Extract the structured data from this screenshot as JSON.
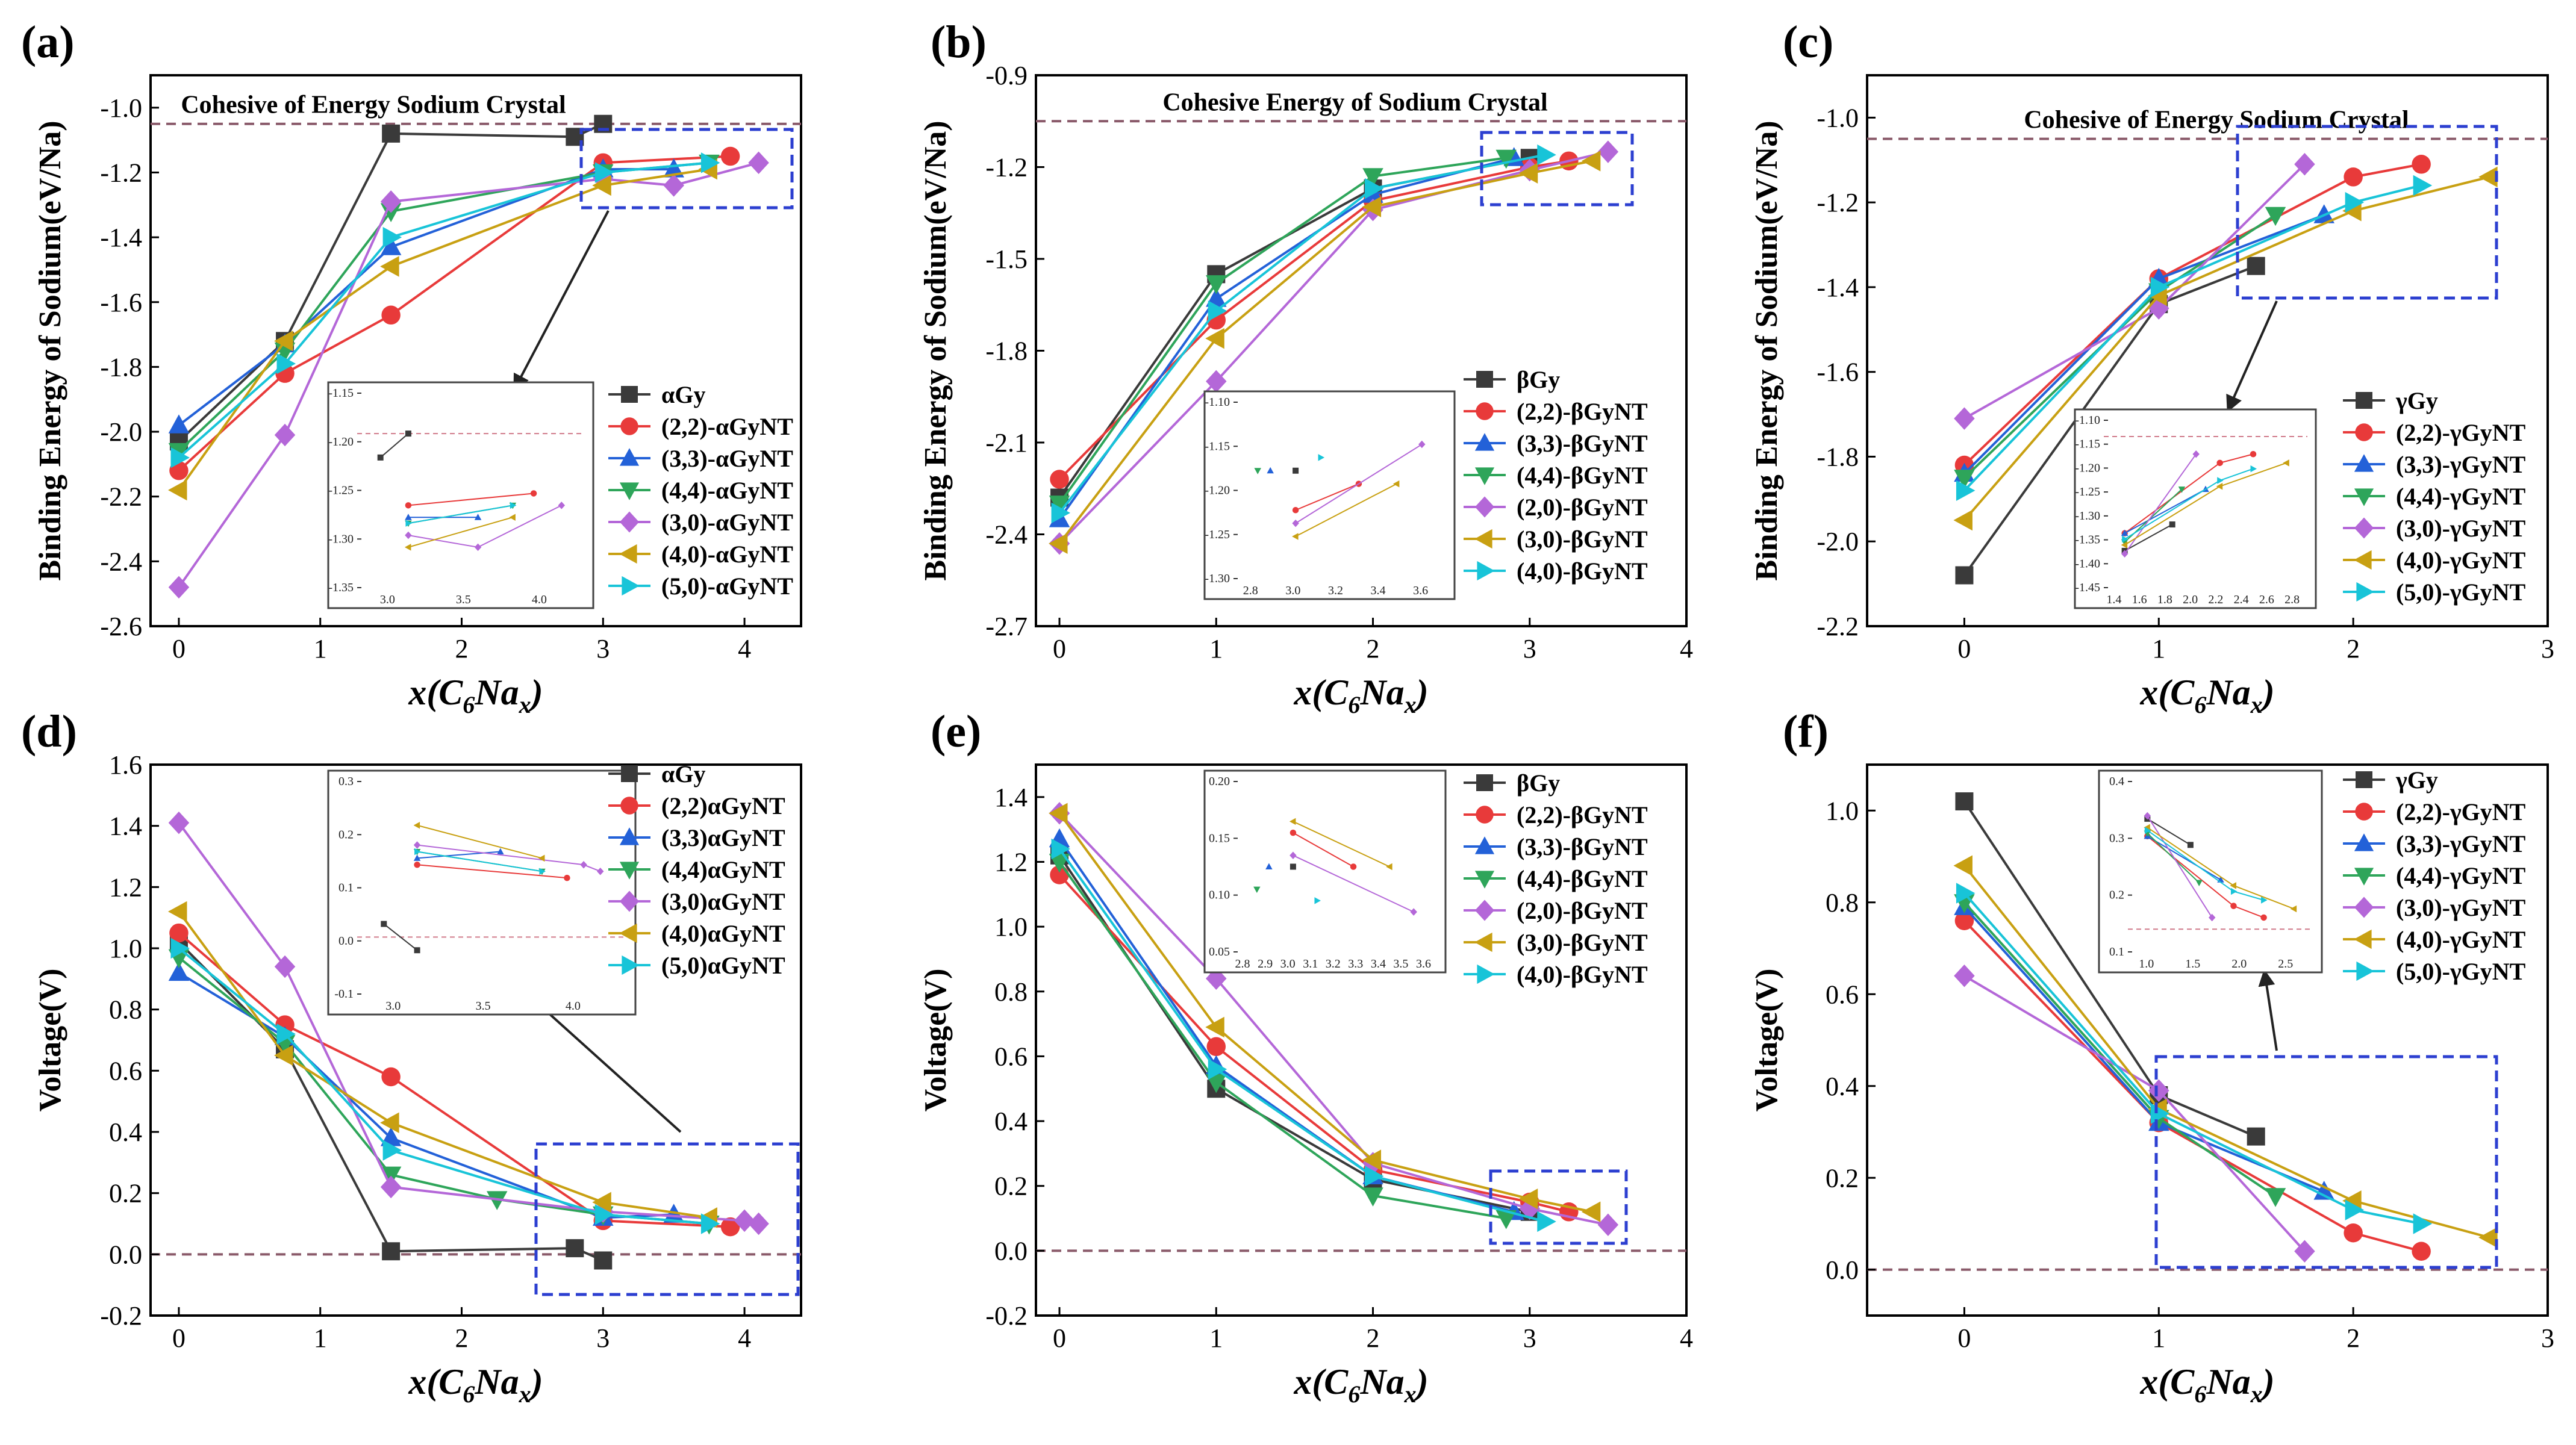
{
  "figure": {
    "panels": [
      "(a)",
      "(b)",
      "(c)",
      "(d)",
      "(e)",
      "(f)"
    ],
    "cohesive_label_a": "Cohesive of Energy Sodium Crystal",
    "cohesive_label_b": "Cohesive Energy of Sodium Crystal",
    "cohesive_label_c": "Cohesive of Energy Sodium Crystal",
    "ylabel_top": "Binding Energy of Sodium(eV/Na)",
    "ylabel_bottom": "Voltage(V)",
    "xlabel_prefix": "x(C",
    "xlabel_sub6": "6",
    "xlabel_mid": "Na",
    "xlabel_subx": "x",
    "xlabel_suffix": ")"
  },
  "colors": {
    "black": "#3a3a3a",
    "red": "#e83a3a",
    "blue": "#2361d8",
    "green": "#2ea55a",
    "purple": "#b467d8",
    "gold": "#c8a012",
    "cyan": "#18c4d8"
  },
  "chart_data": [
    {
      "type": "line",
      "id": "a",
      "title": "(a)",
      "ylabel": "Binding Energy of Sodium(eV/Na)",
      "xlabel": "x(C6Nax)",
      "xlim": [
        -0.2,
        4.4
      ],
      "ylim": [
        -2.6,
        -0.9
      ],
      "xticks": [
        0,
        1,
        2,
        3,
        4
      ],
      "yticks": [
        -2.6,
        -2.4,
        -2.2,
        -2.0,
        -1.8,
        -1.6,
        -1.4,
        -1.2,
        -1.0
      ],
      "reference_line": -1.05,
      "reference_label": "Cohesive of Energy Sodium Crystal",
      "series": [
        {
          "name": "αGy",
          "color": "black",
          "marker": "square",
          "x": [
            0,
            0.75,
            1.5,
            2.8,
            3.0
          ],
          "y": [
            -2.03,
            -1.72,
            -1.08,
            -1.09,
            -1.05
          ]
        },
        {
          "name": "(2,2)-αGyNT",
          "color": "red",
          "marker": "circle",
          "x": [
            0,
            0.75,
            1.5,
            3.0,
            3.9
          ],
          "y": [
            -2.12,
            -1.82,
            -1.64,
            -1.17,
            -1.15
          ]
        },
        {
          "name": "(3,3)-αGyNT",
          "color": "blue",
          "marker": "triangle-up",
          "x": [
            0,
            0.75,
            1.5,
            3.0,
            3.5
          ],
          "y": [
            -1.98,
            -1.73,
            -1.43,
            -1.19,
            -1.19
          ]
        },
        {
          "name": "(4,4)-αGyNT",
          "color": "green",
          "marker": "triangle-down",
          "x": [
            0,
            0.75,
            1.5,
            3.0,
            3.75
          ],
          "y": [
            -2.06,
            -1.75,
            -1.32,
            -1.2,
            -1.17
          ]
        },
        {
          "name": "(3,0)-αGyNT",
          "color": "purple",
          "marker": "diamond",
          "x": [
            0,
            0.75,
            1.5,
            3.0,
            3.5,
            4.1
          ],
          "y": [
            -2.48,
            -2.01,
            -1.29,
            -1.22,
            -1.24,
            -1.17
          ]
        },
        {
          "name": "(4,0)-αGyNT",
          "color": "gold",
          "marker": "triangle-left",
          "x": [
            0,
            0.75,
            1.5,
            3.0,
            3.75
          ],
          "y": [
            -2.18,
            -1.72,
            -1.49,
            -1.24,
            -1.19
          ]
        },
        {
          "name": "(5,0)-αGyNT",
          "color": "cyan",
          "marker": "triangle-right",
          "x": [
            0,
            0.75,
            1.5,
            3.0,
            3.75
          ],
          "y": [
            -2.08,
            -1.79,
            -1.4,
            -1.2,
            -1.17
          ]
        }
      ],
      "inset": {
        "xticks": [
          "3.0",
          "3.5",
          "4.0"
        ],
        "yticks": [
          "-1.15",
          "-1.20",
          "-1.25",
          "-1.30",
          "-1.35"
        ]
      }
    },
    {
      "type": "line",
      "id": "b",
      "title": "(b)",
      "ylabel": "Binding Energy of Sodium(eV/Na)",
      "xlabel": "x(C6Nax)",
      "xlim": [
        -0.15,
        4.0
      ],
      "ylim": [
        -2.7,
        -0.9
      ],
      "xticks": [
        0,
        1,
        2,
        3,
        4
      ],
      "yticks": [
        -2.7,
        -2.4,
        -2.1,
        -1.8,
        -1.5,
        -1.2,
        -0.9
      ],
      "reference_line": -1.05,
      "reference_label": "Cohesive Energy of Sodium Crystal",
      "series": [
        {
          "name": "βGy",
          "color": "black",
          "marker": "square",
          "x": [
            0,
            1,
            2,
            3
          ],
          "y": [
            -2.28,
            -1.55,
            -1.27,
            -1.17
          ]
        },
        {
          "name": "(2,2)-βGyNT",
          "color": "red",
          "marker": "circle",
          "x": [
            0,
            1,
            2,
            3,
            3.25
          ],
          "y": [
            -2.22,
            -1.7,
            -1.31,
            -1.2,
            -1.18
          ]
        },
        {
          "name": "(3,3)-βGyNT",
          "color": "blue",
          "marker": "triangle-up",
          "x": [
            0,
            1,
            2,
            2.9
          ],
          "y": [
            -2.35,
            -1.63,
            -1.29,
            -1.17
          ]
        },
        {
          "name": "(4,4)-βGyNT",
          "color": "green",
          "marker": "triangle-down",
          "x": [
            0,
            1,
            2,
            2.85
          ],
          "y": [
            -2.3,
            -1.58,
            -1.23,
            -1.17
          ]
        },
        {
          "name": "(2,0)-βGyNT",
          "color": "purple",
          "marker": "diamond",
          "x": [
            0,
            1,
            2,
            3,
            3.5
          ],
          "y": [
            -2.43,
            -1.9,
            -1.34,
            -1.21,
            -1.15
          ]
        },
        {
          "name": "(3,0)-βGyNT",
          "color": "gold",
          "marker": "triangle-left",
          "x": [
            0,
            1,
            2,
            3,
            3.4
          ],
          "y": [
            -2.43,
            -1.76,
            -1.33,
            -1.22,
            -1.18
          ]
        },
        {
          "name": "(4,0)-βGyNT",
          "color": "cyan",
          "marker": "triangle-right",
          "x": [
            0,
            1,
            2,
            3.1
          ],
          "y": [
            -2.33,
            -1.67,
            -1.27,
            -1.16
          ]
        }
      ],
      "inset": {
        "xticks": [
          "2.8",
          "3.0",
          "3.2",
          "3.4",
          "3.6"
        ],
        "yticks": [
          "-1.10",
          "-1.15",
          "-1.20",
          "-1.25",
          "-1.30"
        ]
      }
    },
    {
      "type": "line",
      "id": "c",
      "title": "(c)",
      "ylabel": "Binding Energy of Sodium(eV/Na)",
      "xlabel": "x(C6Nax)",
      "xlim": [
        -0.5,
        3.0
      ],
      "ylim": [
        -2.2,
        -0.9
      ],
      "xticks": [
        0,
        1,
        2,
        3
      ],
      "yticks": [
        -2.2,
        -2.0,
        -1.8,
        -1.6,
        -1.4,
        -1.2,
        -1.0
      ],
      "reference_line": -1.05,
      "reference_label": "Cohesive of Energy Sodium Crystal",
      "series": [
        {
          "name": "γGy",
          "color": "black",
          "marker": "square",
          "x": [
            0,
            1,
            1.5
          ],
          "y": [
            -2.08,
            -1.44,
            -1.35
          ]
        },
        {
          "name": "(2,2)-γGyNT",
          "color": "red",
          "marker": "circle",
          "x": [
            0,
            1,
            2,
            2.35
          ],
          "y": [
            -1.82,
            -1.38,
            -1.14,
            -1.11
          ]
        },
        {
          "name": "(3,3)-γGyNT",
          "color": "blue",
          "marker": "triangle-up",
          "x": [
            0,
            1,
            1.85
          ],
          "y": [
            -1.84,
            -1.38,
            -1.23
          ]
        },
        {
          "name": "(4,4)-γGyNT",
          "color": "green",
          "marker": "triangle-down",
          "x": [
            0,
            1,
            1.6
          ],
          "y": [
            -1.85,
            -1.41,
            -1.23
          ]
        },
        {
          "name": "(3,0)-γGyNT",
          "color": "purple",
          "marker": "diamond",
          "x": [
            0,
            1,
            1.75
          ],
          "y": [
            -1.71,
            -1.45,
            -1.11
          ]
        },
        {
          "name": "(4,0)-γGyNT",
          "color": "gold",
          "marker": "triangle-left",
          "x": [
            0,
            1,
            2,
            2.7
          ],
          "y": [
            -1.95,
            -1.42,
            -1.22,
            -1.14
          ]
        },
        {
          "name": "(5,0)-γGyNT",
          "color": "cyan",
          "marker": "triangle-right",
          "x": [
            0,
            1,
            2,
            2.35
          ],
          "y": [
            -1.88,
            -1.4,
            -1.2,
            -1.16
          ]
        }
      ],
      "inset": {
        "xticks": [
          "1.4",
          "1.6",
          "1.8",
          "2.0",
          "2.2",
          "2.4",
          "2.6",
          "2.8"
        ],
        "yticks": [
          "-1.10",
          "-1.15",
          "-1.20",
          "-1.25",
          "-1.30",
          "-1.35",
          "-1.40",
          "-1.45"
        ]
      }
    },
    {
      "type": "line",
      "id": "d",
      "title": "(d)",
      "ylabel": "Voltage(V)",
      "xlabel": "x(C6Nax)",
      "xlim": [
        -0.2,
        4.4
      ],
      "ylim": [
        -0.2,
        1.6
      ],
      "xticks": [
        0,
        1,
        2,
        3,
        4
      ],
      "yticks": [
        -0.2,
        0.0,
        0.2,
        0.4,
        0.6,
        0.8,
        1.0,
        1.2,
        1.4,
        1.6
      ],
      "reference_line": 0.0,
      "series": [
        {
          "name": "αGy",
          "color": "black",
          "marker": "square",
          "x": [
            0,
            0.75,
            1.5,
            2.8,
            3.0
          ],
          "y": [
            1.02,
            0.67,
            0.01,
            0.02,
            -0.02
          ]
        },
        {
          "name": "(2,2)αGyNT",
          "color": "red",
          "marker": "circle",
          "x": [
            0,
            0.75,
            1.5,
            3.0,
            3.9
          ],
          "y": [
            1.05,
            0.75,
            0.58,
            0.11,
            0.09
          ]
        },
        {
          "name": "(3,3)αGyNT",
          "color": "blue",
          "marker": "triangle-up",
          "x": [
            0,
            0.75,
            1.5,
            3.0,
            3.5
          ],
          "y": [
            0.92,
            0.71,
            0.38,
            0.12,
            0.13
          ]
        },
        {
          "name": "(4,4)αGyNT",
          "color": "green",
          "marker": "triangle-down",
          "x": [
            0,
            0.75,
            1.5,
            2.25,
            3.0,
            3.75
          ],
          "y": [
            0.97,
            0.69,
            0.26,
            0.18,
            0.13,
            0.1
          ]
        },
        {
          "name": "(3,0)αGyNT",
          "color": "purple",
          "marker": "diamond",
          "x": [
            0,
            0.75,
            1.5,
            3.0,
            4.0,
            4.1
          ],
          "y": [
            1.41,
            0.94,
            0.22,
            0.14,
            0.11,
            0.1
          ]
        },
        {
          "name": "(4,0)αGyNT",
          "color": "gold",
          "marker": "triangle-left",
          "x": [
            0,
            0.75,
            1.5,
            3.0,
            3.75
          ],
          "y": [
            1.12,
            0.65,
            0.43,
            0.17,
            0.12
          ]
        },
        {
          "name": "(5,0)αGyNT",
          "color": "cyan",
          "marker": "triangle-right",
          "x": [
            0,
            0.75,
            1.5,
            3.0,
            3.75
          ],
          "y": [
            1.0,
            0.72,
            0.34,
            0.13,
            0.1
          ]
        }
      ],
      "inset": {
        "xticks": [
          "3.0",
          "3.5",
          "4.0"
        ],
        "yticks": [
          "0.3",
          "0.2",
          "0.1",
          "0.0",
          "-0.1"
        ]
      }
    },
    {
      "type": "line",
      "id": "e",
      "title": "(e)",
      "ylabel": "Voltage(V)",
      "xlabel": "x(C6Nax)",
      "xlim": [
        -0.15,
        4.0
      ],
      "ylim": [
        -0.2,
        1.5
      ],
      "xticks": [
        0,
        1,
        2,
        3,
        4
      ],
      "yticks": [
        -0.2,
        0.0,
        0.2,
        0.4,
        0.6,
        0.8,
        1.0,
        1.2,
        1.4
      ],
      "reference_line": 0.0,
      "series": [
        {
          "name": "βGy",
          "color": "black",
          "marker": "square",
          "x": [
            0,
            1,
            2,
            3
          ],
          "y": [
            1.22,
            0.5,
            0.22,
            0.12
          ]
        },
        {
          "name": "(2,2)-βGyNT",
          "color": "red",
          "marker": "circle",
          "x": [
            0,
            1,
            2,
            3,
            3.25
          ],
          "y": [
            1.16,
            0.63,
            0.25,
            0.15,
            0.12
          ]
        },
        {
          "name": "(3,3)-βGyNT",
          "color": "blue",
          "marker": "triangle-up",
          "x": [
            0,
            1,
            2,
            2.9
          ],
          "y": [
            1.27,
            0.57,
            0.23,
            0.12
          ]
        },
        {
          "name": "(4,4)-βGyNT",
          "color": "green",
          "marker": "triangle-down",
          "x": [
            0,
            1,
            2,
            2.85
          ],
          "y": [
            1.2,
            0.52,
            0.17,
            0.1
          ]
        },
        {
          "name": "(2,0)-βGyNT",
          "color": "purple",
          "marker": "diamond",
          "x": [
            0,
            1,
            2,
            3,
            3.5
          ],
          "y": [
            1.35,
            0.84,
            0.27,
            0.13,
            0.08
          ]
        },
        {
          "name": "(3,0)-βGyNT",
          "color": "gold",
          "marker": "triangle-left",
          "x": [
            0,
            1,
            2,
            3,
            3.4
          ],
          "y": [
            1.35,
            0.69,
            0.28,
            0.16,
            0.12
          ]
        },
        {
          "name": "(4,0)-βGyNT",
          "color": "cyan",
          "marker": "triangle-right",
          "x": [
            0,
            1,
            2,
            3.1
          ],
          "y": [
            1.24,
            0.56,
            0.23,
            0.09
          ]
        }
      ],
      "inset": {
        "xticks": [
          "2.8",
          "2.9",
          "3.0",
          "3.1",
          "3.2",
          "3.3",
          "3.4",
          "3.5",
          "3.6"
        ],
        "yticks": [
          "0.20",
          "0.15",
          "0.10",
          "0.05"
        ]
      }
    },
    {
      "type": "line",
      "id": "f",
      "title": "(f)",
      "ylabel": "Voltage(V)",
      "xlabel": "x(C6Nax)",
      "xlim": [
        -0.5,
        3.0
      ],
      "ylim": [
        -0.1,
        1.1
      ],
      "xticks": [
        0,
        1,
        2,
        3
      ],
      "yticks": [
        0.0,
        0.2,
        0.4,
        0.6,
        0.8,
        1.0
      ],
      "reference_line": 0.0,
      "series": [
        {
          "name": "γGy",
          "color": "black",
          "marker": "square",
          "x": [
            0,
            1,
            1.5
          ],
          "y": [
            1.02,
            0.38,
            0.29
          ]
        },
        {
          "name": "(2,2)-γGyNT",
          "color": "red",
          "marker": "circle",
          "x": [
            0,
            1,
            2,
            2.35
          ],
          "y": [
            0.76,
            0.32,
            0.08,
            0.04
          ]
        },
        {
          "name": "(3,3)-γGyNT",
          "color": "blue",
          "marker": "triangle-up",
          "x": [
            0,
            1,
            1.85
          ],
          "y": [
            0.79,
            0.32,
            0.17
          ]
        },
        {
          "name": "(4,4)-γGyNT",
          "color": "green",
          "marker": "triangle-down",
          "x": [
            0,
            1,
            1.6
          ],
          "y": [
            0.8,
            0.33,
            0.16
          ]
        },
        {
          "name": "(3,0)-γGyNT",
          "color": "purple",
          "marker": "diamond",
          "x": [
            0,
            1,
            1.75
          ],
          "y": [
            0.64,
            0.39,
            0.04
          ]
        },
        {
          "name": "(4,0)-γGyNT",
          "color": "gold",
          "marker": "triangle-left",
          "x": [
            0,
            1,
            2,
            2.7
          ],
          "y": [
            0.88,
            0.35,
            0.15,
            0.07
          ]
        },
        {
          "name": "(5,0)-γGyNT",
          "color": "cyan",
          "marker": "triangle-right",
          "x": [
            0,
            1,
            2,
            2.35
          ],
          "y": [
            0.82,
            0.34,
            0.13,
            0.1
          ]
        }
      ],
      "inset": {
        "xticks": [
          "1.0",
          "1.5",
          "2.0",
          "2.5"
        ],
        "yticks": [
          "0.4",
          "0.3",
          "0.2",
          "0.1"
        ]
      }
    }
  ]
}
